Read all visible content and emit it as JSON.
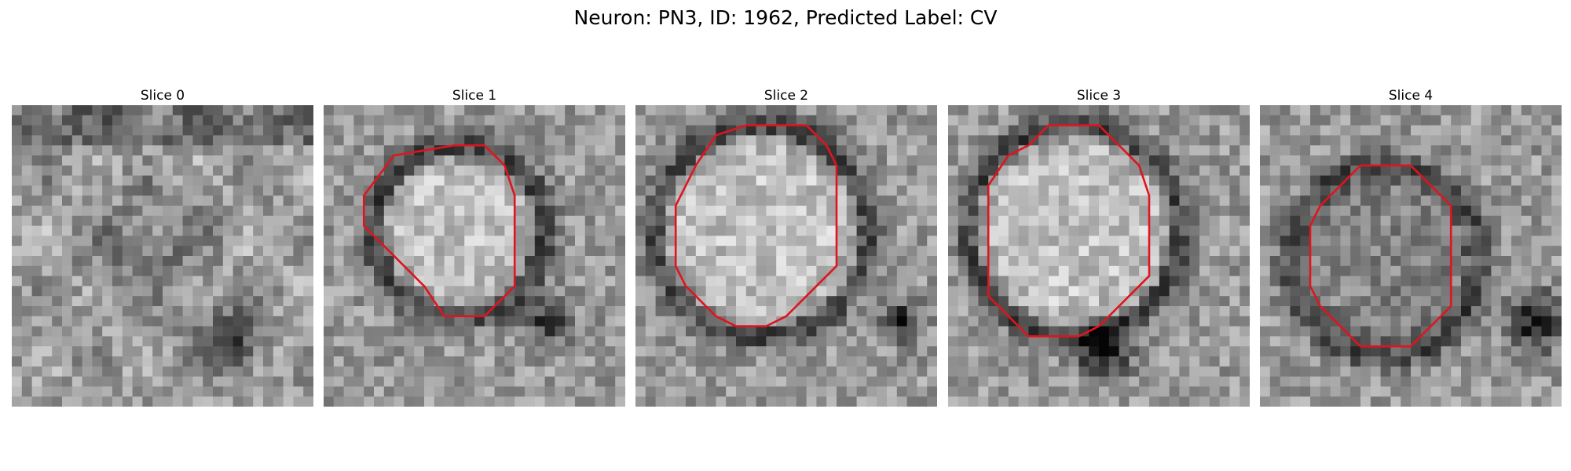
{
  "figure": {
    "title": "Neuron: PN3, ID: 1962, Predicted Label: CV"
  },
  "panels": [
    {
      "title": "Slice 0",
      "image": "grayscale-em-patch",
      "contour": []
    },
    {
      "title": "Slice 1",
      "image": "grayscale-em-patch",
      "contour": [
        [
          13,
          4
        ],
        [
          16,
          4
        ],
        [
          18,
          6
        ],
        [
          19,
          9
        ],
        [
          19,
          18
        ],
        [
          17,
          20
        ],
        [
          16,
          21
        ],
        [
          12,
          21
        ],
        [
          10,
          18
        ],
        [
          8,
          16
        ],
        [
          6,
          14
        ],
        [
          4,
          12
        ],
        [
          4,
          9
        ],
        [
          7,
          5
        ]
      ]
    },
    {
      "title": "Slice 2",
      "image": "grayscale-em-patch",
      "contour": [
        [
          11,
          2
        ],
        [
          17,
          2
        ],
        [
          19,
          4
        ],
        [
          20,
          6
        ],
        [
          20,
          16
        ],
        [
          18,
          18
        ],
        [
          15,
          21
        ],
        [
          13,
          22
        ],
        [
          10,
          22
        ],
        [
          8,
          21
        ],
        [
          5,
          18
        ],
        [
          4,
          16
        ],
        [
          4,
          10
        ],
        [
          5,
          8
        ],
        [
          6,
          6
        ],
        [
          8,
          3
        ]
      ]
    },
    {
      "title": "Slice 3",
      "image": "grayscale-em-patch",
      "contour": [
        [
          10,
          2
        ],
        [
          15,
          2
        ],
        [
          17,
          4
        ],
        [
          19,
          6
        ],
        [
          20,
          9
        ],
        [
          20,
          17
        ],
        [
          18,
          19
        ],
        [
          15,
          22
        ],
        [
          13,
          23
        ],
        [
          8,
          23
        ],
        [
          4,
          19
        ],
        [
          4,
          8
        ],
        [
          6,
          5
        ],
        [
          8,
          4
        ]
      ]
    },
    {
      "title": "Slice 4",
      "image": "grayscale-em-patch",
      "contour": [
        [
          10,
          6
        ],
        [
          15,
          6
        ],
        [
          17,
          8
        ],
        [
          19,
          10
        ],
        [
          19,
          20
        ],
        [
          17,
          22
        ],
        [
          15,
          24
        ],
        [
          10,
          24
        ],
        [
          8,
          22
        ],
        [
          6,
          20
        ],
        [
          5,
          18
        ],
        [
          5,
          12
        ],
        [
          6,
          10
        ],
        [
          8,
          8
        ]
      ]
    }
  ],
  "colors": {
    "contour": "#e0141e"
  }
}
